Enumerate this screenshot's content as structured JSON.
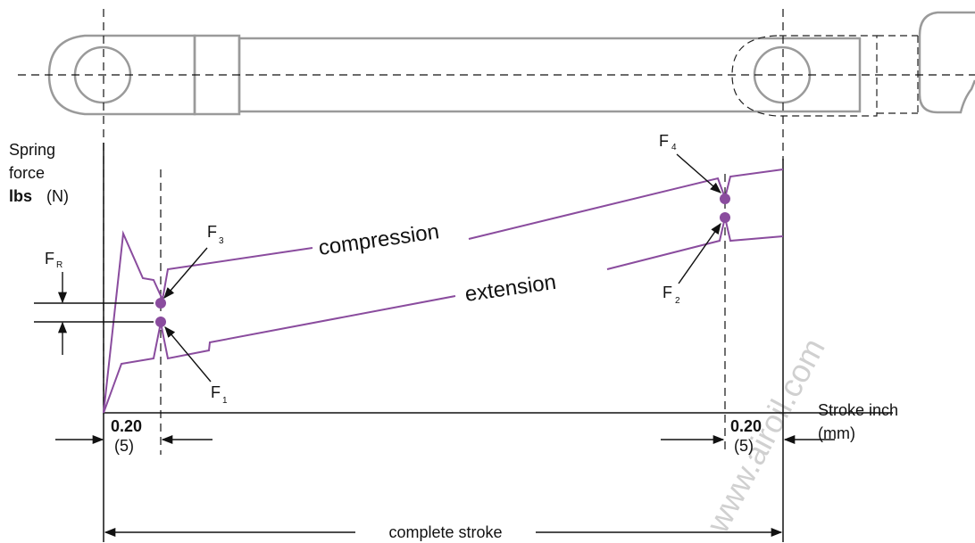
{
  "labels": {
    "y_axis_line1": "Spring",
    "y_axis_line2": "force",
    "y_axis_unit_bold": "lbs",
    "y_axis_unit_metric": "(N)",
    "x_axis_line1": "Stroke inch",
    "x_axis_line2": "(mm)",
    "compression": "compression",
    "extension": "extension",
    "complete_stroke": "complete stroke",
    "dim_left_value": "0.20",
    "dim_left_metric": "(5)",
    "dim_right_value": "0.20",
    "dim_right_metric": "(5)"
  },
  "forces": {
    "fr": {
      "letter": "F",
      "sub": "R"
    },
    "f1": {
      "letter": "F",
      "sub": "1"
    },
    "f2": {
      "letter": "F",
      "sub": "2"
    },
    "f3": {
      "letter": "F",
      "sub": "3"
    },
    "f4": {
      "letter": "F",
      "sub": "4"
    }
  },
  "watermark": "www.airoil.com",
  "colors": {
    "curve": "#8a4c9e",
    "points": "#8a4c9e",
    "spring_outline": "#9a9a9a",
    "lines": "#111111"
  }
}
